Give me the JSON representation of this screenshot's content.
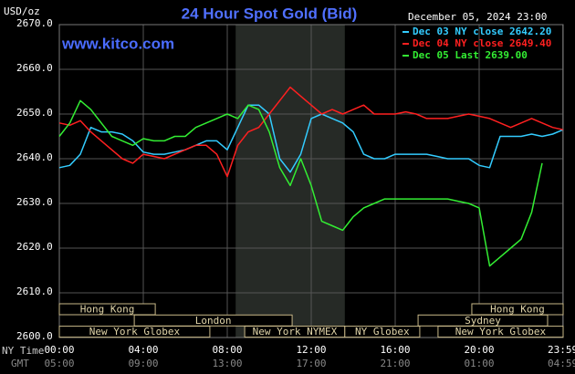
{
  "chart_data": {
    "type": "line",
    "title": "24 Hour Spot Gold (Bid)",
    "y_label": "USD/oz",
    "timestamp": "December 05, 2024 23:00",
    "website": "www.kitco.com",
    "x_label": "NY Time",
    "x2_label": "GMT",
    "x": [
      0,
      0.5,
      1,
      1.5,
      2,
      2.5,
      3,
      3.5,
      4,
      4.5,
      5,
      5.5,
      6,
      6.5,
      7,
      7.5,
      8,
      8.5,
      9,
      9.5,
      10,
      10.5,
      11,
      11.5,
      12,
      12.5,
      13,
      13.5,
      14,
      14.5,
      15,
      15.5,
      16,
      16.5,
      17,
      17.5,
      18,
      18.5,
      19,
      19.5,
      20,
      20.5,
      21,
      21.5,
      22,
      22.5,
      23,
      23.5,
      24
    ],
    "series": [
      {
        "name": "Dec 03 NY close 2642.20",
        "color": "#33ccff",
        "values": [
          2638,
          2638.5,
          2641,
          2647,
          2646,
          2646,
          2645.5,
          2644,
          2641.5,
          2641,
          2641,
          2641.5,
          2642,
          2643,
          2644,
          2644,
          2642,
          2647,
          2652,
          2652,
          2650,
          2640,
          2637,
          2641,
          2649,
          2650,
          2649,
          2648,
          2646,
          2641,
          2640,
          2640,
          2641,
          2641,
          2641,
          2641,
          2640.5,
          2640,
          2640,
          2640,
          2638.5,
          2638,
          2645,
          2645,
          2645,
          2645.5,
          2645,
          2645.5,
          2646.5
        ]
      },
      {
        "name": "Dec 04 NY close 2649.40",
        "color": "#ff2020",
        "values": [
          2648,
          2647.5,
          2648.5,
          2646,
          2644,
          2642,
          2640,
          2639,
          2641,
          2640.5,
          2640,
          2641,
          2642,
          2643,
          2643,
          2641,
          2636,
          2643,
          2646,
          2647,
          2650,
          2653,
          2656,
          2654,
          2652,
          2650,
          2651,
          2650,
          2651,
          2652,
          2650,
          2650,
          2650,
          2650.5,
          2650,
          2649,
          2649,
          2649,
          2649.5,
          2650,
          2649.5,
          2649,
          2648,
          2647,
          2648,
          2649,
          2648,
          2647,
          2646.5
        ]
      },
      {
        "name": "Dec 05 Last 2639.00",
        "color": "#33ee33",
        "values": [
          2645,
          2648,
          2653,
          2651,
          2648,
          2645,
          2644,
          2643,
          2644.5,
          2644,
          2644,
          2645,
          2645,
          2647,
          2648,
          2649,
          2650,
          2649,
          2652,
          2651,
          2646,
          2638,
          2634,
          2640,
          2634,
          2626,
          2625,
          2624,
          2627,
          2629,
          2630,
          2631,
          2631,
          2631,
          2631,
          2631,
          2631,
          2631,
          2630.5,
          2630,
          2629,
          2616,
          2618,
          2620,
          2622,
          2628,
          2639,
          null,
          null
        ]
      }
    ],
    "xlim": [
      0,
      24
    ],
    "xticks": [
      {
        "value": 0,
        "label": "00:00"
      },
      {
        "value": 4,
        "label": "04:00"
      },
      {
        "value": 8,
        "label": "08:00"
      },
      {
        "value": 12,
        "label": "12:00"
      },
      {
        "value": 16,
        "label": "16:00"
      },
      {
        "value": 20,
        "label": "20:00"
      },
      {
        "value": 23.983,
        "label": "23:59"
      }
    ],
    "xticks_gmt": [
      "05:00",
      "09:00",
      "13:00",
      "17:00",
      "21:00",
      "01:00",
      "04:59"
    ],
    "ylim": [
      2600,
      2670
    ],
    "yticks": [
      {
        "value": 2600,
        "label": "2600.0"
      },
      {
        "value": 2610,
        "label": "2610.0"
      },
      {
        "value": 2620,
        "label": "2620.0"
      },
      {
        "value": 2630,
        "label": "2630.0"
      },
      {
        "value": 2640,
        "label": "2640.0"
      },
      {
        "value": 2650,
        "label": "2650.0"
      },
      {
        "value": 2660,
        "label": "2660.0"
      },
      {
        "value": 2670,
        "label": "2670.0"
      }
    ],
    "grid": true,
    "shade": [
      8.4,
      13.6
    ],
    "sessions": [
      [
        {
          "label": "Hong Kong",
          "start": 0,
          "end": 4.57
        },
        {
          "label": "Hong Kong",
          "start": 19.65,
          "end": 24
        }
      ],
      [
        {
          "label": "London",
          "start": 3.57,
          "end": 11.09
        },
        {
          "label": "Sydney",
          "start": 17.09,
          "end": 23.26
        }
      ],
      [
        {
          "label": "New York Globex",
          "start": 0,
          "end": 7.17
        },
        {
          "label": "New York NYMEX",
          "start": 8.83,
          "end": 13.6
        },
        {
          "label": "NY Globex",
          "start": 13.6,
          "end": 17.17
        },
        {
          "label": "New York Globex",
          "start": 18.04,
          "end": 24
        }
      ]
    ]
  }
}
